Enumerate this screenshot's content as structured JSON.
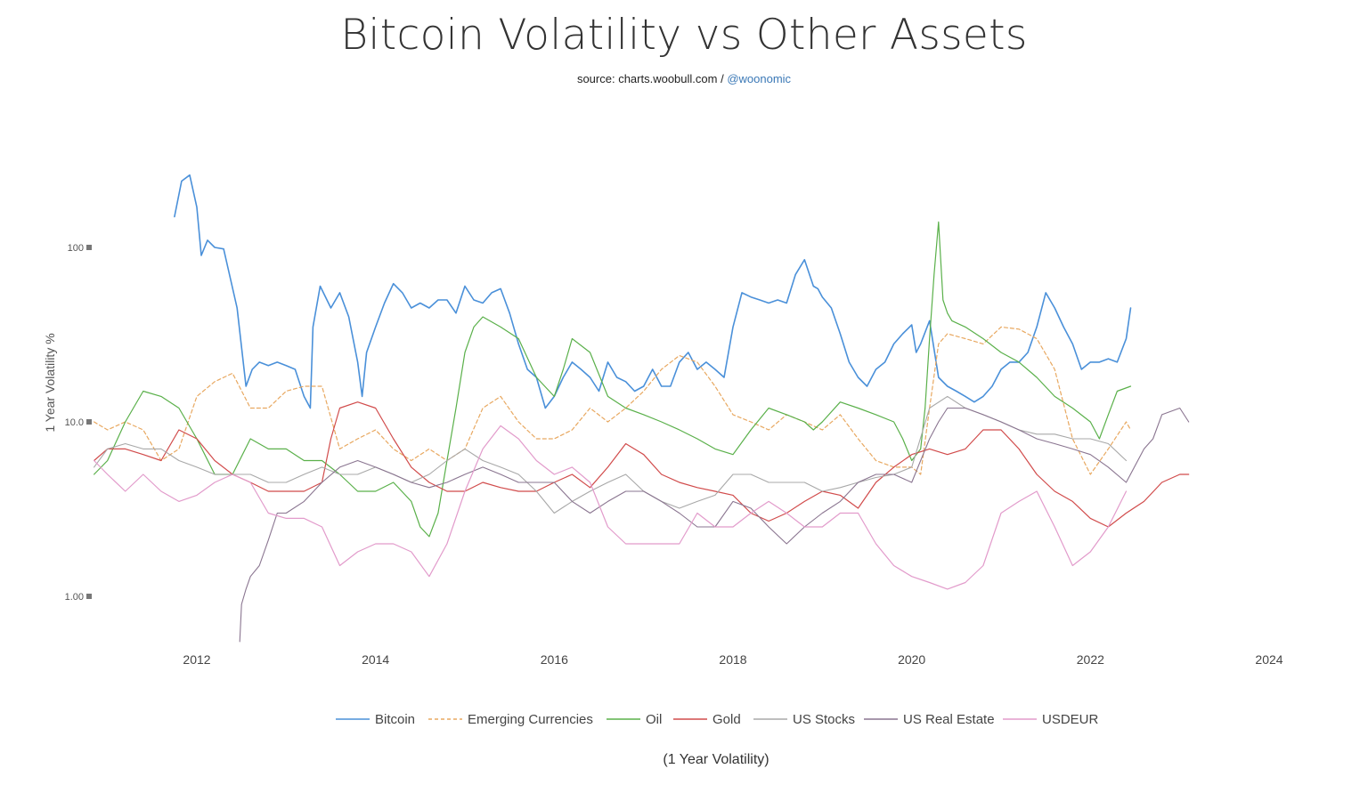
{
  "title": "Bitcoin Volatility vs Other Assets",
  "subtitle": {
    "prefix": "source: charts.woobull.com / ",
    "link": "@woonomic"
  },
  "caption": "(1 Year Volatility)",
  "chart_data": {
    "type": "line",
    "title": "Bitcoin Volatility vs Other Assets",
    "ylabel": "1 Year Volatility %",
    "xlabel": "",
    "y_scale": "log",
    "xlim": [
      2010.8,
      2024.2
    ],
    "ylim": [
      0.53,
      320
    ],
    "x_ticks": [
      2012,
      2014,
      2016,
      2018,
      2020,
      2022,
      2024
    ],
    "x_tick_labels": [
      "2012",
      "2014",
      "2016",
      "2018",
      "2020",
      "2022",
      "2024"
    ],
    "y_ticks": [
      1,
      10,
      100
    ],
    "y_tick_labels": [
      "1.00",
      "10.0",
      "100"
    ],
    "grid": false,
    "legend_position": "bottom",
    "series": [
      {
        "name": "Bitcoin",
        "color": "#4a90d9",
        "dash": "solid",
        "width": 1.6,
        "x": [
          2011.75,
          2011.83,
          2011.92,
          2012.0,
          2012.05,
          2012.12,
          2012.2,
          2012.3,
          2012.45,
          2012.55,
          2012.62,
          2012.7,
          2012.8,
          2012.9,
          2013.0,
          2013.1,
          2013.2,
          2013.27,
          2013.3,
          2013.38,
          2013.5,
          2013.6,
          2013.7,
          2013.8,
          2013.85,
          2013.9,
          2014.0,
          2014.1,
          2014.2,
          2014.3,
          2014.4,
          2014.5,
          2014.6,
          2014.7,
          2014.8,
          2014.9,
          2015.0,
          2015.1,
          2015.2,
          2015.3,
          2015.4,
          2015.5,
          2015.6,
          2015.7,
          2015.8,
          2015.9,
          2016.0,
          2016.1,
          2016.2,
          2016.3,
          2016.4,
          2016.5,
          2016.6,
          2016.7,
          2016.8,
          2016.9,
          2017.0,
          2017.1,
          2017.2,
          2017.3,
          2017.4,
          2017.5,
          2017.6,
          2017.7,
          2017.8,
          2017.9,
          2018.0,
          2018.1,
          2018.2,
          2018.3,
          2018.4,
          2018.5,
          2018.6,
          2018.7,
          2018.8,
          2018.9,
          2018.95,
          2019.0,
          2019.1,
          2019.2,
          2019.3,
          2019.4,
          2019.5,
          2019.6,
          2019.7,
          2019.8,
          2019.9,
          2020.0,
          2020.05,
          2020.1,
          2020.2,
          2020.3,
          2020.4,
          2020.5,
          2020.6,
          2020.7,
          2020.8,
          2020.9,
          2021.0,
          2021.1,
          2021.2,
          2021.3,
          2021.4,
          2021.5,
          2021.6,
          2021.7,
          2021.8,
          2021.9,
          2022.0,
          2022.1,
          2022.2,
          2022.3,
          2022.4,
          2022.45
        ],
        "values": [
          150,
          240,
          260,
          170,
          90,
          110,
          100,
          98,
          45,
          16,
          20,
          22,
          21,
          22,
          21,
          20,
          14,
          12,
          35,
          60,
          45,
          55,
          40,
          22,
          14,
          25,
          35,
          48,
          62,
          55,
          45,
          48,
          45,
          50,
          50,
          42,
          60,
          50,
          48,
          55,
          58,
          42,
          28,
          20,
          18,
          12,
          14,
          18,
          22,
          20,
          18,
          15,
          22,
          18,
          17,
          15,
          16,
          20,
          16,
          16,
          22,
          25,
          20,
          22,
          20,
          18,
          35,
          55,
          52,
          50,
          48,
          50,
          48,
          70,
          85,
          60,
          58,
          52,
          45,
          32,
          22,
          18,
          16,
          20,
          22,
          28,
          32,
          36,
          25,
          28,
          38,
          18,
          16,
          15,
          14,
          13,
          14,
          16,
          20,
          22,
          22,
          25,
          35,
          55,
          45,
          35,
          28,
          20,
          22,
          22,
          23,
          22,
          30,
          45
        ]
      },
      {
        "name": "Emerging Currencies",
        "color": "#e8a860",
        "dash": "dashed",
        "width": 1.2,
        "x": [
          2010.85,
          2011.0,
          2011.2,
          2011.4,
          2011.6,
          2011.8,
          2012.0,
          2012.2,
          2012.4,
          2012.6,
          2012.8,
          2013.0,
          2013.2,
          2013.4,
          2013.6,
          2013.8,
          2014.0,
          2014.2,
          2014.4,
          2014.6,
          2014.8,
          2015.0,
          2015.2,
          2015.4,
          2015.6,
          2015.8,
          2016.0,
          2016.2,
          2016.4,
          2016.6,
          2016.8,
          2017.0,
          2017.2,
          2017.4,
          2017.6,
          2017.8,
          2018.0,
          2018.2,
          2018.4,
          2018.6,
          2018.8,
          2019.0,
          2019.2,
          2019.4,
          2019.6,
          2019.8,
          2020.0,
          2020.1,
          2020.2,
          2020.3,
          2020.4,
          2020.6,
          2020.8,
          2021.0,
          2021.2,
          2021.4,
          2021.6,
          2021.8,
          2022.0,
          2022.2,
          2022.4,
          2022.45
        ],
        "values": [
          10,
          9,
          10,
          9,
          6,
          7,
          14,
          17,
          19,
          12,
          12,
          15,
          16,
          16,
          7,
          8,
          9,
          7,
          6,
          7,
          6,
          7,
          12,
          14,
          10,
          8,
          8,
          9,
          12,
          10,
          12,
          15,
          20,
          24,
          22,
          16,
          11,
          10,
          9,
          11,
          10,
          9,
          11,
          8,
          6,
          5.5,
          5.5,
          5,
          12,
          28,
          32,
          30,
          28,
          35,
          34,
          30,
          20,
          8,
          5,
          7,
          10,
          9
        ]
      },
      {
        "name": "Oil",
        "color": "#5ab04a",
        "dash": "solid",
        "width": 1.2,
        "x": [
          2010.85,
          2011.0,
          2011.2,
          2011.4,
          2011.6,
          2011.8,
          2012.0,
          2012.2,
          2012.4,
          2012.6,
          2012.8,
          2013.0,
          2013.2,
          2013.4,
          2013.6,
          2013.8,
          2014.0,
          2014.2,
          2014.4,
          2014.5,
          2014.6,
          2014.7,
          2014.8,
          2014.9,
          2015.0,
          2015.1,
          2015.2,
          2015.4,
          2015.6,
          2015.8,
          2016.0,
          2016.1,
          2016.2,
          2016.4,
          2016.6,
          2016.8,
          2017.0,
          2017.2,
          2017.4,
          2017.6,
          2017.8,
          2018.0,
          2018.2,
          2018.4,
          2018.6,
          2018.8,
          2018.9,
          2019.0,
          2019.2,
          2019.4,
          2019.6,
          2019.8,
          2019.9,
          2020.0,
          2020.1,
          2020.15,
          2020.2,
          2020.25,
          2020.3,
          2020.35,
          2020.4,
          2020.45,
          2020.6,
          2020.8,
          2021.0,
          2021.2,
          2021.4,
          2021.6,
          2021.8,
          2022.0,
          2022.1,
          2022.2,
          2022.3,
          2022.45
        ],
        "values": [
          5,
          6,
          10,
          15,
          14,
          12,
          8,
          5,
          5,
          8,
          7,
          7,
          6,
          6,
          5,
          4,
          4,
          4.5,
          3.5,
          2.5,
          2.2,
          3,
          6,
          12,
          25,
          35,
          40,
          35,
          30,
          18,
          14,
          20,
          30,
          25,
          14,
          12,
          11,
          10,
          9,
          8,
          7,
          6.5,
          9,
          12,
          11,
          10,
          9,
          10,
          13,
          12,
          11,
          10,
          8,
          6,
          7,
          12,
          30,
          70,
          140,
          50,
          42,
          38,
          35,
          30,
          25,
          22,
          18,
          14,
          12,
          10,
          8,
          11,
          15,
          16
        ]
      },
      {
        "name": "Gold",
        "color": "#d14b4b",
        "dash": "solid",
        "width": 1.2,
        "x": [
          2010.85,
          2011.0,
          2011.2,
          2011.4,
          2011.6,
          2011.8,
          2012.0,
          2012.2,
          2012.4,
          2012.6,
          2012.8,
          2013.0,
          2013.2,
          2013.4,
          2013.5,
          2013.6,
          2013.8,
          2014.0,
          2014.2,
          2014.4,
          2014.6,
          2014.8,
          2015.0,
          2015.2,
          2015.4,
          2015.6,
          2015.8,
          2016.0,
          2016.2,
          2016.4,
          2016.6,
          2016.8,
          2017.0,
          2017.2,
          2017.4,
          2017.6,
          2017.8,
          2018.0,
          2018.2,
          2018.4,
          2018.6,
          2018.8,
          2019.0,
          2019.2,
          2019.4,
          2019.6,
          2019.8,
          2020.0,
          2020.2,
          2020.4,
          2020.6,
          2020.8,
          2021.0,
          2021.2,
          2021.4,
          2021.6,
          2021.8,
          2022.0,
          2022.2,
          2022.4,
          2022.6,
          2022.8,
          2023.0,
          2023.1
        ],
        "values": [
          6,
          7,
          7,
          6.5,
          6,
          9,
          8,
          6,
          5,
          4.5,
          4,
          4,
          4,
          4.5,
          8,
          12,
          13,
          12,
          8,
          5.5,
          4.5,
          4,
          4,
          4.5,
          4.2,
          4,
          4,
          4.5,
          5,
          4.2,
          5.5,
          7.5,
          6.5,
          5,
          4.5,
          4.2,
          4,
          3.8,
          3,
          2.7,
          3,
          3.5,
          4,
          3.8,
          3.2,
          4.5,
          5.5,
          6.5,
          7,
          6.5,
          7,
          9,
          9,
          7,
          5,
          4,
          3.5,
          2.8,
          2.5,
          3,
          3.5,
          4.5,
          5,
          5
        ]
      },
      {
        "name": "US Stocks",
        "color": "#a8a8a8",
        "dash": "solid",
        "width": 1.1,
        "x": [
          2010.85,
          2011.0,
          2011.2,
          2011.4,
          2011.6,
          2011.8,
          2012.0,
          2012.2,
          2012.4,
          2012.6,
          2012.8,
          2013.0,
          2013.2,
          2013.4,
          2013.6,
          2013.8,
          2014.0,
          2014.2,
          2014.4,
          2014.6,
          2014.8,
          2015.0,
          2015.2,
          2015.4,
          2015.6,
          2015.8,
          2016.0,
          2016.2,
          2016.4,
          2016.6,
          2016.8,
          2017.0,
          2017.2,
          2017.4,
          2017.6,
          2017.8,
          2018.0,
          2018.2,
          2018.4,
          2018.6,
          2018.8,
          2019.0,
          2019.2,
          2019.4,
          2019.6,
          2019.8,
          2020.0,
          2020.2,
          2020.4,
          2020.6,
          2020.8,
          2021.0,
          2021.2,
          2021.4,
          2021.6,
          2021.8,
          2022.0,
          2022.2,
          2022.4
        ],
        "values": [
          5.5,
          7,
          7.5,
          7,
          7,
          6,
          5.5,
          5,
          5,
          5,
          4.5,
          4.5,
          5,
          5.5,
          5,
          5,
          5.5,
          5,
          4.5,
          5,
          6,
          7,
          6,
          5.5,
          5,
          4,
          3,
          3.5,
          4,
          4.5,
          5,
          4,
          3.5,
          3.2,
          3.5,
          3.8,
          5,
          5,
          4.5,
          4.5,
          4.5,
          4,
          4.2,
          4.5,
          4.8,
          5,
          5.5,
          12,
          14,
          12,
          11,
          10,
          9,
          8.5,
          8.5,
          8,
          8,
          7.5,
          6
        ]
      },
      {
        "name": "US Real Estate",
        "color": "#8a7590",
        "dash": "solid",
        "width": 1.1,
        "x": [
          2012.48,
          2012.5,
          2012.55,
          2012.6,
          2012.7,
          2012.8,
          2012.9,
          2013.0,
          2013.2,
          2013.4,
          2013.6,
          2013.8,
          2014.0,
          2014.2,
          2014.4,
          2014.6,
          2014.8,
          2015.0,
          2015.2,
          2015.4,
          2015.6,
          2015.8,
          2016.0,
          2016.2,
          2016.4,
          2016.6,
          2016.8,
          2017.0,
          2017.2,
          2017.4,
          2017.6,
          2017.8,
          2018.0,
          2018.2,
          2018.4,
          2018.6,
          2018.8,
          2019.0,
          2019.2,
          2019.4,
          2019.6,
          2019.8,
          2020.0,
          2020.1,
          2020.2,
          2020.3,
          2020.4,
          2020.6,
          2020.8,
          2021.0,
          2021.2,
          2021.4,
          2021.6,
          2021.8,
          2022.0,
          2022.2,
          2022.4,
          2022.6,
          2022.7,
          2022.8,
          2023.0,
          2023.1
        ],
        "values": [
          0.55,
          0.9,
          1.1,
          1.3,
          1.5,
          2.1,
          3,
          3,
          3.5,
          4.5,
          5.5,
          6,
          5.5,
          5,
          4.5,
          4.2,
          4.5,
          5,
          5.5,
          5,
          4.5,
          4.5,
          4.5,
          3.5,
          3,
          3.5,
          4,
          4,
          3.5,
          3,
          2.5,
          2.5,
          3.5,
          3.2,
          2.5,
          2,
          2.5,
          3,
          3.5,
          4.5,
          5,
          5,
          4.5,
          6,
          8,
          10,
          12,
          12,
          11,
          10,
          9,
          8,
          7.5,
          7,
          6.5,
          5.5,
          4.5,
          7,
          8,
          11,
          12,
          10
        ]
      },
      {
        "name": "USDEUR",
        "color": "#e29bcb",
        "dash": "solid",
        "width": 1.2,
        "x": [
          2010.85,
          2011.0,
          2011.2,
          2011.4,
          2011.6,
          2011.8,
          2012.0,
          2012.2,
          2012.4,
          2012.6,
          2012.8,
          2013.0,
          2013.2,
          2013.4,
          2013.6,
          2013.8,
          2014.0,
          2014.2,
          2014.4,
          2014.6,
          2014.8,
          2015.0,
          2015.2,
          2015.4,
          2015.6,
          2015.8,
          2016.0,
          2016.2,
          2016.4,
          2016.6,
          2016.8,
          2017.0,
          2017.2,
          2017.4,
          2017.6,
          2017.8,
          2018.0,
          2018.2,
          2018.4,
          2018.6,
          2018.8,
          2019.0,
          2019.2,
          2019.4,
          2019.6,
          2019.8,
          2020.0,
          2020.2,
          2020.4,
          2020.6,
          2020.8,
          2021.0,
          2021.2,
          2021.4,
          2021.6,
          2021.8,
          2022.0,
          2022.2,
          2022.4
        ],
        "values": [
          6,
          5,
          4,
          5,
          4,
          3.5,
          3.8,
          4.5,
          5,
          4.5,
          3,
          2.8,
          2.8,
          2.5,
          1.5,
          1.8,
          2,
          2,
          1.8,
          1.3,
          2,
          4,
          7,
          9.5,
          8,
          6,
          5,
          5.5,
          4.5,
          2.5,
          2,
          2,
          2,
          2,
          3,
          2.5,
          2.5,
          3,
          3.5,
          3,
          2.5,
          2.5,
          3,
          3,
          2,
          1.5,
          1.3,
          1.2,
          1.1,
          1.2,
          1.5,
          3,
          3.5,
          4,
          2.5,
          1.5,
          1.8,
          2.5,
          4
        ]
      }
    ]
  }
}
